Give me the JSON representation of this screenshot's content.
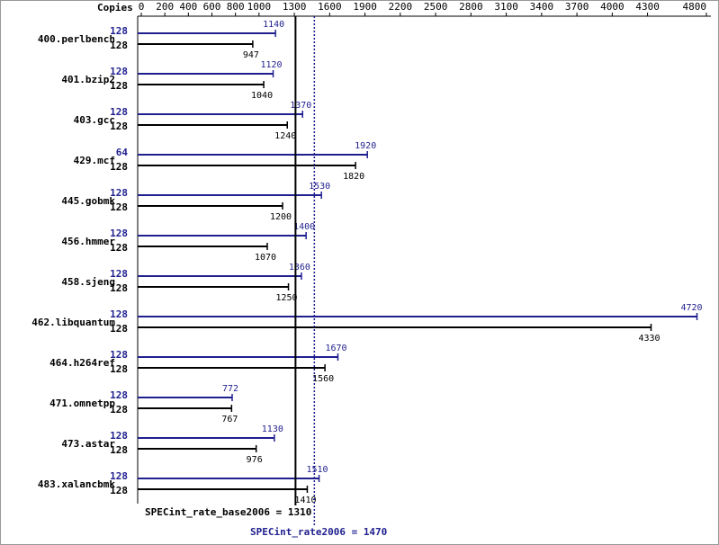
{
  "chart_data": {
    "type": "bar",
    "orientation": "horizontal",
    "x_axis_label": "Copies",
    "categories": [
      "400.perlbench",
      "401.bzip2",
      "403.gcc",
      "429.mcf",
      "445.gobmk",
      "456.hmmer",
      "458.sjeng",
      "462.libquantum",
      "464.h264ref",
      "471.omnetpp",
      "473.astar",
      "483.xalancbmk"
    ],
    "series": [
      {
        "color": "#1f1f8f",
        "copies": [
          128,
          128,
          128,
          64,
          128,
          128,
          128,
          128,
          128,
          128,
          128,
          128
        ],
        "values": [
          1140,
          1120,
          1370,
          1920,
          1530,
          1400,
          1360,
          4720,
          1670,
          772,
          1130,
          1510
        ]
      },
      {
        "color": "#000000",
        "copies": [
          128,
          128,
          128,
          128,
          128,
          128,
          128,
          128,
          128,
          128,
          128,
          128
        ],
        "values": [
          947,
          1040,
          1240,
          1820,
          1200,
          1070,
          1250,
          4330,
          1560,
          767,
          976,
          1410
        ]
      }
    ],
    "xlim": [
      0,
      4800
    ],
    "xticks": [
      0,
      200,
      400,
      600,
      800,
      1000,
      1300,
      1600,
      1900,
      2200,
      2500,
      2800,
      3100,
      3400,
      3700,
      4000,
      4300,
      4800
    ],
    "reference_lines": [
      {
        "label": "SPECint_rate_base2006 = 1310",
        "value": 1310,
        "color": "#000000",
        "style": "solid"
      },
      {
        "label": "SPECint_rate2006 = 1470",
        "value": 1470,
        "color": "#1f1f8f",
        "style": "dotted"
      }
    ]
  }
}
